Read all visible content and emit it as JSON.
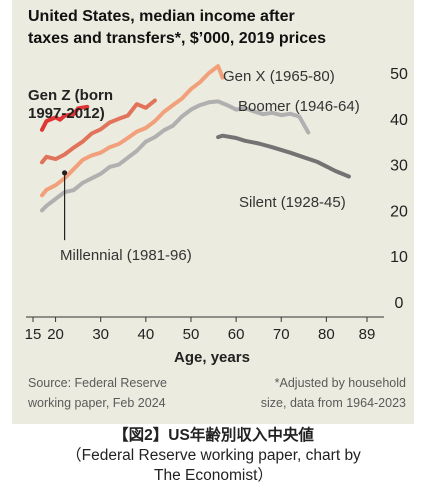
{
  "header": {
    "title_line1": "United States, median income after",
    "title_line2": "taxes and transfers*, $’000, 2019 prices"
  },
  "chart_data": {
    "type": "line",
    "xlabel": "Age, years",
    "ylabel": "",
    "xlim": [
      15,
      89
    ],
    "ylim": [
      0,
      50
    ],
    "x_ticks": [
      15,
      20,
      30,
      40,
      50,
      60,
      70,
      80,
      89
    ],
    "y_ticks": [
      0,
      10,
      20,
      30,
      40,
      50
    ],
    "y_axis_side": "right",
    "grid": false,
    "series": [
      {
        "name": "Silent (1928-45)",
        "color": "#737373",
        "x": [
          56,
          57,
          60,
          62,
          65,
          68,
          70,
          72,
          75,
          78,
          80,
          82,
          85
        ],
        "y": [
          36,
          36.3,
          35.8,
          35.2,
          34.6,
          33.8,
          33.2,
          32.6,
          31.6,
          30.6,
          29.6,
          28.6,
          27.4
        ]
      },
      {
        "name": "Millennial (1981-96)",
        "color": "#b0b0b0",
        "x": [
          17,
          18,
          20,
          22,
          24,
          26,
          28,
          30,
          32,
          34,
          36,
          38,
          40,
          42,
          44,
          46,
          48,
          50,
          52,
          54,
          56,
          58,
          60,
          62,
          64,
          66,
          68,
          70,
          72,
          74,
          76
        ],
        "y": [
          20,
          21,
          22.5,
          24,
          24.4,
          26,
          27,
          28,
          29.5,
          30,
          31.5,
          33,
          35,
          36,
          37.5,
          38.5,
          40.5,
          42,
          43,
          43.6,
          43.8,
          43,
          42,
          42.3,
          41.6,
          41,
          41.3,
          40.8,
          41.1,
          40.5,
          37
        ]
      },
      {
        "name": "Boomer (1946-64)",
        "color": "#f2a07b",
        "x": [
          17,
          18,
          20,
          22,
          24,
          26,
          28,
          30,
          32,
          34,
          36,
          38,
          40,
          42,
          44,
          46,
          48,
          50,
          52,
          54,
          56,
          57
        ],
        "y": [
          23.3,
          24.5,
          25.5,
          27,
          29,
          31,
          32,
          32.6,
          33.8,
          34.5,
          35.8,
          37.2,
          38,
          39.5,
          41.5,
          43,
          44.4,
          46.5,
          48,
          50,
          51.5,
          49
        ]
      },
      {
        "name": "Gen X (1965-80)",
        "color": "#e2735b",
        "x": [
          17,
          18,
          20,
          22,
          24,
          26,
          28,
          30,
          32,
          34,
          36,
          38,
          40,
          42
        ],
        "y": [
          30.5,
          31.7,
          31.2,
          32.2,
          33.7,
          35,
          36.8,
          37.7,
          39.2,
          40,
          40.7,
          43.2,
          42.4,
          44
        ]
      },
      {
        "name": "Gen Z (born 1997-2012)",
        "color": "#e13434",
        "x": [
          17,
          18,
          20,
          21,
          22,
          24,
          25,
          27
        ],
        "y": [
          37.6,
          39.5,
          40.3,
          39.8,
          40.7,
          41,
          42.3,
          42.6
        ]
      }
    ],
    "annotations": {
      "genz": "Gen Z (born\n1997-2012)",
      "genx": "Gen X (1965-80)",
      "boomer": "Boomer (1946-64)",
      "silent": "Silent (1928-45)",
      "millennial": "Millennial (1981-96)"
    }
  },
  "footer": {
    "source_line1": "Source: Federal Reserve",
    "source_line2": "working paper, Feb 2024",
    "note_line1": "*Adjusted by household",
    "note_line2": "size, data from 1964-2023"
  },
  "caption": {
    "title": "【図2】US年齢別収入中央値",
    "sub_line1": "（Federal Reserve working paper, chart by",
    "sub_line2": "The Economist）"
  }
}
